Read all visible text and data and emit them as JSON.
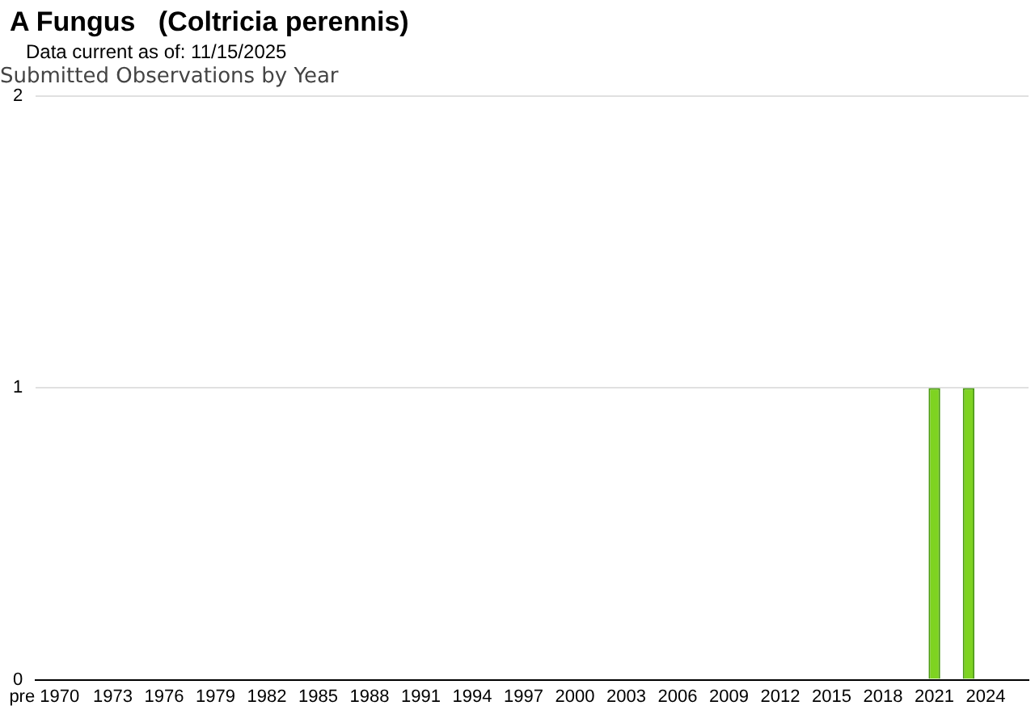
{
  "chart_data": {
    "type": "bar",
    "title": "A Fungus   (Coltricia perennis)",
    "subtitle": "Data current as of: 11/15/2025",
    "annotations": [
      "Submitted Observations by Year"
    ],
    "categories": [
      "pre 1970",
      null,
      null,
      null,
      "1973",
      null,
      null,
      "1976",
      null,
      null,
      "1979",
      null,
      null,
      "1982",
      null,
      null,
      "1985",
      null,
      null,
      "1988",
      null,
      null,
      "1991",
      null,
      null,
      "1994",
      null,
      null,
      "1997",
      null,
      null,
      "2000",
      null,
      null,
      "2003",
      null,
      null,
      "2006",
      null,
      null,
      "2009",
      null,
      null,
      "2012",
      null,
      null,
      "2015",
      null,
      null,
      "2018",
      null,
      null,
      "2021",
      null,
      null,
      "2024",
      null,
      null
    ],
    "values": [
      0,
      0,
      0,
      0,
      0,
      0,
      0,
      0,
      0,
      0,
      0,
      0,
      0,
      0,
      0,
      0,
      0,
      0,
      0,
      0,
      0,
      0,
      0,
      0,
      0,
      0,
      0,
      0,
      0,
      0,
      0,
      0,
      0,
      0,
      0,
      0,
      0,
      0,
      0,
      0,
      0,
      0,
      0,
      0,
      0,
      0,
      0,
      0,
      0,
      0,
      0,
      0,
      1,
      0,
      1,
      0,
      0,
      0
    ],
    "color": "#7ed321",
    "ylim": [
      0,
      2
    ],
    "yticks": [
      0,
      1,
      2
    ],
    "grid": "y"
  }
}
